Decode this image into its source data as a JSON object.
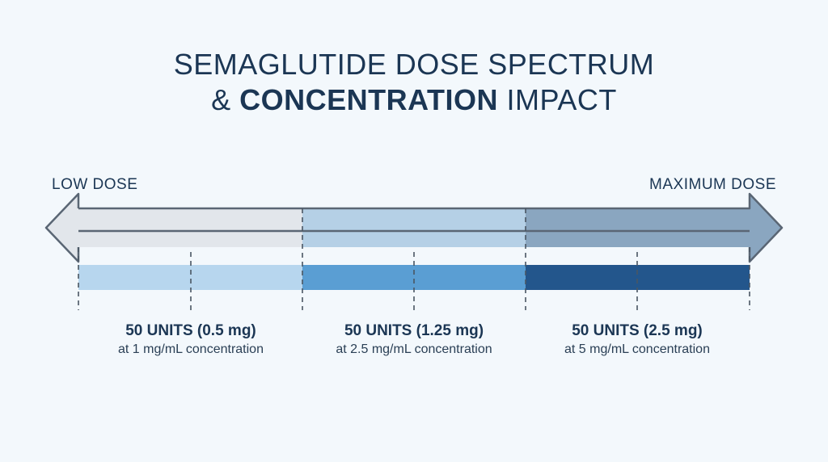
{
  "title": {
    "line1": "SEMAGLUTIDE DOSE SPECTRUM",
    "line2_prefix": "& ",
    "line2_bold": "CONCENTRATION",
    "line2_suffix": " IMPACT"
  },
  "spectrum": {
    "low_label": "LOW DOSE",
    "max_label": "MAXIMUM DOSE"
  },
  "segments": [
    {
      "dose": "50 UNITS (0.5 mg)",
      "concentration": "at 1 mg/mL concentration",
      "color": "#b7d6ee"
    },
    {
      "dose": "50 UNITS (1.25 mg)",
      "concentration": "at 2.5 mg/mL concentration",
      "color": "#5a9ed3"
    },
    {
      "dose": "50 UNITS (2.5 mg)",
      "concentration": "at 5 mg/mL concentration",
      "color": "#23568c"
    }
  ],
  "arrow_colors": [
    "#e2e6eb",
    "#b5d0e6",
    "#8aa6c0"
  ],
  "arrow_stroke": "#5a6674"
}
